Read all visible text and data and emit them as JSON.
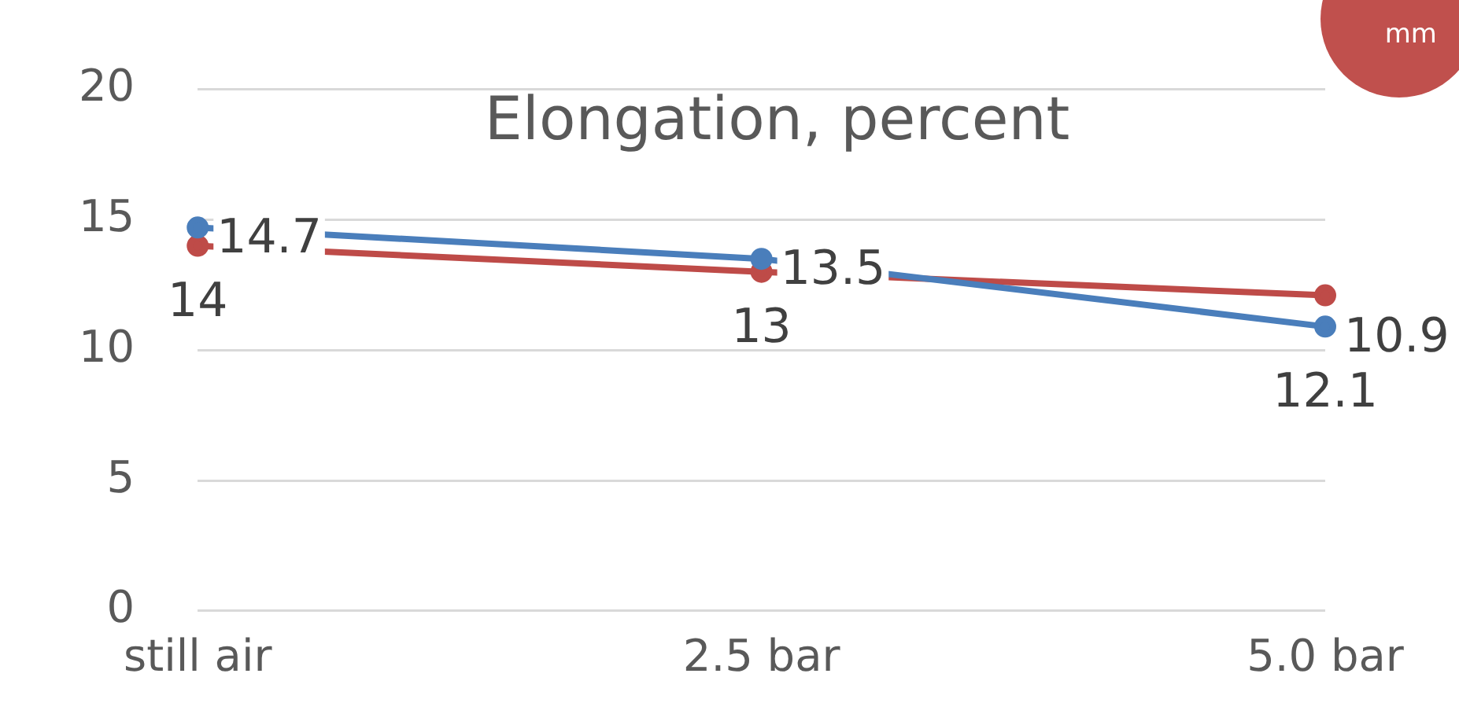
{
  "chart_data": {
    "type": "line",
    "title": "Elongation, percent",
    "categories": [
      "still air",
      "2.5 bar",
      "5.0 bar"
    ],
    "series": [
      {
        "color": "#4a7ebb",
        "values": [
          14.7,
          13.5,
          10.9
        ]
      },
      {
        "color": "#be4b48",
        "values": [
          14,
          13,
          12.1
        ]
      }
    ],
    "ylim": [
      0,
      20
    ],
    "yticks": [
      0,
      5,
      10,
      15,
      20
    ],
    "grid": "y",
    "legend": false,
    "marker": "circle",
    "data_labels": true,
    "annotations": [
      "mm"
    ]
  }
}
